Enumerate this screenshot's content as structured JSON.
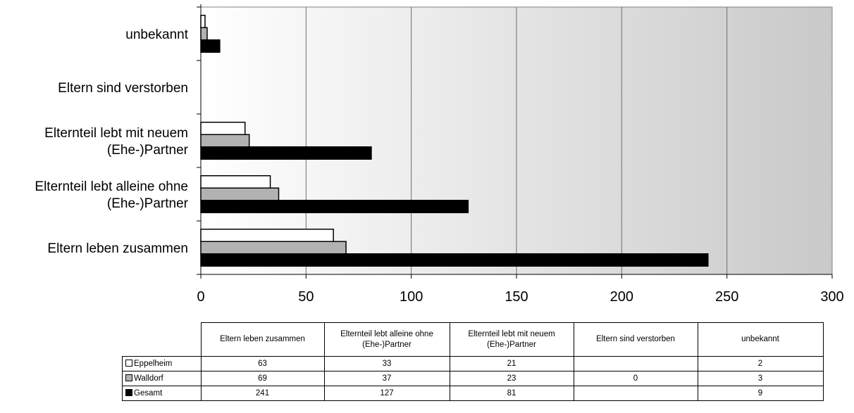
{
  "chart_data": {
    "type": "bar",
    "orientation": "horizontal",
    "categories": [
      "Eltern leben zusammen",
      "Elternteil lebt alleine ohne (Ehe-)Partner",
      "Elternteil lebt mit neuem (Ehe-)Partner",
      "Eltern sind verstorben",
      "unbekannt"
    ],
    "category_axis_labels": [
      [
        "Eltern leben zusammen"
      ],
      [
        "Elternteil lebt alleine ohne",
        "(Ehe-)Partner"
      ],
      [
        "Elternteil lebt mit neuem",
        "(Ehe-)Partner"
      ],
      [
        "Eltern sind verstorben"
      ],
      [
        "unbekannt"
      ]
    ],
    "table_headers": [
      "Eltern leben zusammen",
      "Elternteil lebt alleine ohne (Ehe-)Partner",
      "Elternteil lebt mit neuem (Ehe-)Partner",
      "Eltern sind verstorben",
      "unbekannt"
    ],
    "series": [
      {
        "name": "Eppelheim",
        "color": "#ffffff",
        "values": [
          63,
          33,
          21,
          null,
          2
        ]
      },
      {
        "name": "Walldorf",
        "color": "#b2b2b2",
        "values": [
          69,
          37,
          23,
          0,
          3
        ]
      },
      {
        "name": "Gesamt",
        "color": "#000000",
        "values": [
          241,
          127,
          81,
          null,
          9
        ]
      }
    ],
    "xlim": [
      0,
      300
    ],
    "xticks": [
      0,
      50,
      100,
      150,
      200,
      250,
      300
    ],
    "grid": true,
    "legend": "data table below chart"
  }
}
